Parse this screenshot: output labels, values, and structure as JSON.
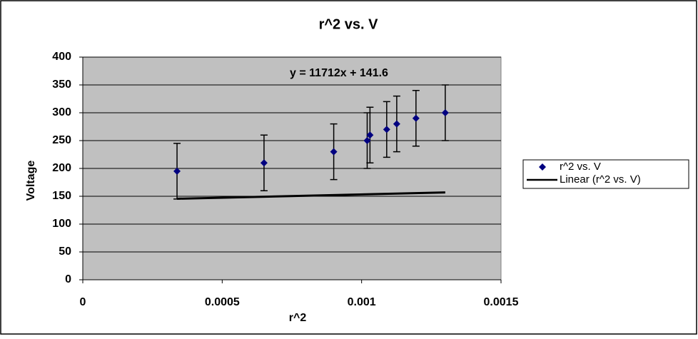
{
  "chart_data": {
    "type": "scatter",
    "title": "r^2 vs. V",
    "x_label": "r^2",
    "y_label": "Voltage",
    "series": [
      {
        "name": "r^2 vs. V",
        "color": "#000080",
        "x": [
          0.000338,
          0.00065,
          0.0009,
          0.00102,
          0.00103,
          0.00109,
          0.001126,
          0.001195,
          0.0013
        ],
        "values": [
          195,
          210,
          230,
          250,
          260,
          270,
          280,
          290,
          300
        ],
        "errors": [
          50,
          50,
          50,
          50,
          50,
          50,
          50,
          50,
          50
        ]
      }
    ],
    "trendline": {
      "name": "Linear (r^2 vs. V)",
      "color": "#000000",
      "slope": 11712,
      "intercept": 141.6,
      "equation": "y = 11712x + 141.6"
    },
    "xlim": [
      0,
      0.0015
    ],
    "xticks": [
      0,
      0.0005,
      0.001,
      0.0015
    ],
    "ylim": [
      0,
      400
    ],
    "yticks": [
      0,
      50,
      100,
      150,
      200,
      250,
      300,
      350,
      400
    ],
    "grid": true,
    "plot_background": "#c0c0c0",
    "legend": "right"
  }
}
